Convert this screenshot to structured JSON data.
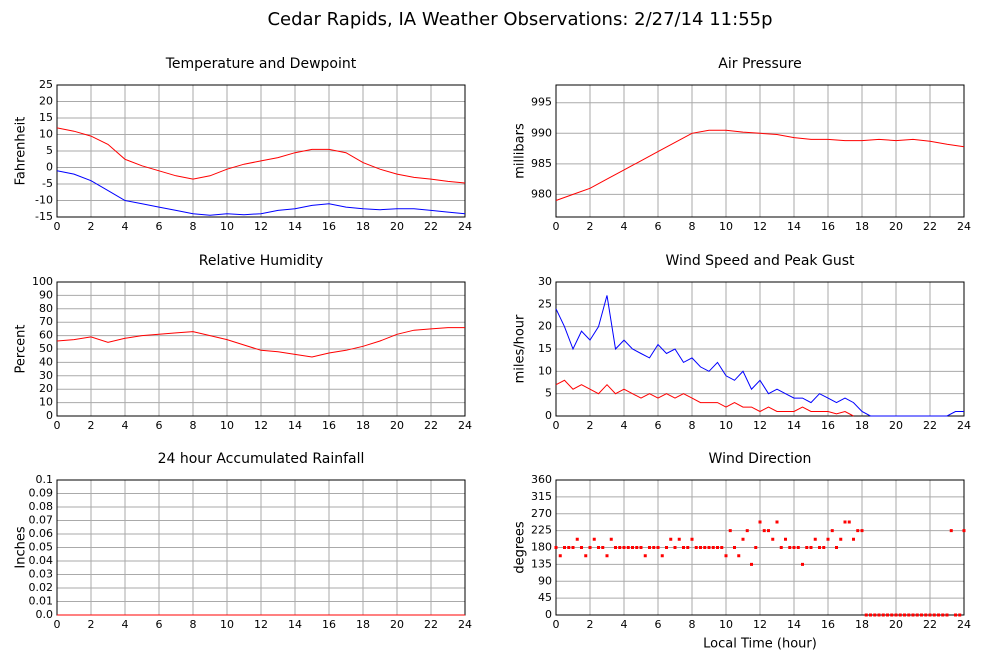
{
  "title": "Cedar Rapids, IA Weather Observations: 2/27/14 11:55p",
  "chart_data": [
    {
      "type": "line",
      "title": "Temperature and Dewpoint",
      "ylabel": "Fahrenheit",
      "x": [
        0,
        1,
        2,
        3,
        4,
        5,
        6,
        7,
        8,
        9,
        10,
        11,
        12,
        13,
        14,
        15,
        16,
        17,
        18,
        19,
        20,
        21,
        22,
        23,
        24
      ],
      "series": [
        {
          "name": "Temperature",
          "color": "#ff0000",
          "values": [
            12,
            11,
            9.5,
            7,
            2.5,
            0.5,
            -1,
            -2.5,
            -3.5,
            -2.5,
            -0.5,
            1,
            2,
            3,
            4.5,
            5.5,
            5.5,
            4.5,
            1.5,
            -0.5,
            -2,
            -3,
            -3.5,
            -4.2,
            -4.7
          ]
        },
        {
          "name": "Dewpoint",
          "color": "#0000ff",
          "values": [
            -1,
            -2,
            -4,
            -7,
            -10,
            -11,
            -12,
            -13,
            -14,
            -14.5,
            -14,
            -14.3,
            -14,
            -13,
            -12.5,
            -11.5,
            -11,
            -12,
            -12.5,
            -12.8,
            -12.5,
            -12.5,
            -13,
            -13.5,
            -14
          ]
        }
      ],
      "xlim": [
        0,
        24
      ],
      "xticks": [
        0,
        2,
        4,
        6,
        8,
        10,
        12,
        14,
        16,
        18,
        20,
        22,
        24
      ],
      "ylim": [
        -15,
        25
      ],
      "yticks": [
        -15,
        -10,
        -5,
        0,
        5,
        10,
        15,
        20,
        25
      ],
      "grid": true
    },
    {
      "type": "line",
      "title": "Air Pressure",
      "ylabel": "millibars",
      "x": [
        0,
        1,
        2,
        3,
        4,
        5,
        6,
        7,
        8,
        9,
        10,
        11,
        12,
        13,
        14,
        15,
        16,
        17,
        18,
        19,
        20,
        21,
        22,
        23,
        24
      ],
      "series": [
        {
          "name": "Pressure",
          "color": "#ff0000",
          "values": [
            979,
            980,
            981,
            982.5,
            984,
            985.5,
            987,
            988.5,
            990,
            990.5,
            990.5,
            990.2,
            990,
            989.8,
            989.3,
            989,
            989,
            988.8,
            988.8,
            989,
            988.8,
            989,
            988.7,
            988.2,
            987.8
          ]
        }
      ],
      "xlim": [
        0,
        24
      ],
      "xticks": [
        0,
        2,
        4,
        6,
        8,
        10,
        12,
        14,
        16,
        18,
        20,
        22,
        24
      ],
      "ylim": [
        976.3,
        997.9
      ],
      "yticks": [
        980,
        985,
        990,
        995
      ],
      "grid": true
    },
    {
      "type": "line",
      "title": "Relative Humidity",
      "ylabel": "Percent",
      "x": [
        0,
        1,
        2,
        3,
        4,
        5,
        6,
        7,
        8,
        9,
        10,
        11,
        12,
        13,
        14,
        15,
        16,
        17,
        18,
        19,
        20,
        21,
        22,
        23,
        24
      ],
      "series": [
        {
          "name": "Humidity",
          "color": "#ff0000",
          "values": [
            56,
            57,
            59,
            55,
            58,
            60,
            61,
            62,
            63,
            60,
            57,
            53,
            49,
            48,
            46,
            44,
            47,
            49,
            52,
            56,
            61,
            64,
            65,
            66,
            66
          ]
        }
      ],
      "xlim": [
        0,
        24
      ],
      "xticks": [
        0,
        2,
        4,
        6,
        8,
        10,
        12,
        14,
        16,
        18,
        20,
        22,
        24
      ],
      "ylim": [
        0,
        100
      ],
      "yticks": [
        0,
        10,
        20,
        30,
        40,
        50,
        60,
        70,
        80,
        90,
        100
      ],
      "grid": true
    },
    {
      "type": "line",
      "title": "Wind Speed and Peak Gust",
      "ylabel": "miles/hour",
      "x": [
        0,
        0.5,
        1,
        1.5,
        2,
        2.5,
        3,
        3.5,
        4,
        4.5,
        5,
        5.5,
        6,
        6.5,
        7,
        7.5,
        8,
        8.5,
        9,
        9.5,
        10,
        10.5,
        11,
        11.5,
        12,
        12.5,
        13,
        13.5,
        14,
        14.5,
        15,
        15.5,
        16,
        16.5,
        17,
        17.5,
        18,
        18.5,
        19,
        19.5,
        20,
        20.5,
        21,
        21.5,
        22,
        22.5,
        23,
        23.5,
        24
      ],
      "series": [
        {
          "name": "Peak Gust",
          "color": "#0000ff",
          "values": [
            24,
            20,
            15,
            19,
            17,
            20,
            27,
            15,
            17,
            15,
            14,
            13,
            16,
            14,
            15,
            12,
            13,
            11,
            10,
            12,
            9,
            8,
            10,
            6,
            8,
            5,
            6,
            5,
            4,
            4,
            3,
            5,
            4,
            3,
            4,
            3,
            1,
            0,
            0,
            0,
            0,
            0,
            0,
            0,
            0,
            0,
            0,
            1,
            1
          ]
        },
        {
          "name": "Wind Speed",
          "color": "#ff0000",
          "values": [
            7,
            8,
            6,
            7,
            6,
            5,
            7,
            5,
            6,
            5,
            4,
            5,
            4,
            5,
            4,
            5,
            4,
            3,
            3,
            3,
            2,
            3,
            2,
            2,
            1,
            2,
            1,
            1,
            1,
            2,
            1,
            1,
            1,
            0.5,
            1,
            0,
            null,
            null,
            null,
            null,
            null,
            null,
            null,
            null,
            null,
            null,
            null,
            null,
            null
          ]
        }
      ],
      "xlim": [
        0,
        24
      ],
      "xticks": [
        0,
        2,
        4,
        6,
        8,
        10,
        12,
        14,
        16,
        18,
        20,
        22,
        24
      ],
      "ylim": [
        0,
        30
      ],
      "yticks": [
        0,
        5,
        10,
        15,
        20,
        25,
        30
      ],
      "grid": true
    },
    {
      "type": "line",
      "title": "24 hour Accumulated Rainfall",
      "ylabel": "Inches",
      "x": [
        0,
        24
      ],
      "series": [
        {
          "name": "Rainfall",
          "color": "#ff0000",
          "values": [
            0,
            0
          ]
        }
      ],
      "xlim": [
        0,
        24
      ],
      "xticks": [
        0,
        2,
        4,
        6,
        8,
        10,
        12,
        14,
        16,
        18,
        20,
        22,
        24
      ],
      "ylim": [
        0,
        0.1
      ],
      "yticks": [
        {
          "value": 0,
          "label": "0.0"
        },
        0.01,
        0.02,
        0.03,
        0.04,
        0.05,
        0.06,
        0.07,
        0.08,
        0.09,
        0.1
      ],
      "grid": true
    },
    {
      "type": "scatter",
      "title": "Wind Direction",
      "ylabel": "degrees",
      "xlabel": "Local Time (hour)",
      "x": [
        0,
        0.25,
        0.5,
        0.75,
        1,
        1.25,
        1.5,
        1.75,
        2,
        2.25,
        2.5,
        2.75,
        3,
        3.25,
        3.5,
        3.75,
        4,
        4.25,
        4.5,
        4.75,
        5,
        5.25,
        5.5,
        5.75,
        6,
        6.25,
        6.5,
        6.75,
        7,
        7.25,
        7.5,
        7.75,
        8,
        8.25,
        8.5,
        8.75,
        9,
        9.25,
        9.5,
        9.75,
        10,
        10.25,
        10.5,
        10.75,
        11,
        11.25,
        11.5,
        11.75,
        12,
        12.25,
        12.5,
        12.75,
        13,
        13.25,
        13.5,
        13.75,
        14,
        14.25,
        14.5,
        14.75,
        15,
        15.25,
        15.5,
        15.75,
        16,
        16.25,
        16.5,
        16.75,
        17,
        17.25,
        17.5,
        17.75,
        18,
        18.25,
        18.5,
        18.75,
        19,
        19.25,
        19.5,
        19.75,
        20,
        20.25,
        20.5,
        20.75,
        21,
        21.25,
        21.5,
        21.75,
        22,
        22.25,
        22.5,
        22.75,
        23,
        23.25,
        23.5,
        23.75,
        24
      ],
      "series": [
        {
          "name": "Direction",
          "color": "#ff0000",
          "values": [
            180,
            158,
            180,
            180,
            180,
            202,
            180,
            158,
            180,
            202,
            180,
            180,
            158,
            202,
            180,
            180,
            180,
            180,
            180,
            180,
            180,
            158,
            180,
            180,
            180,
            158,
            180,
            202,
            180,
            202,
            180,
            180,
            202,
            180,
            180,
            180,
            180,
            180,
            180,
            180,
            158,
            225,
            180,
            158,
            202,
            225,
            135,
            180,
            248,
            225,
            225,
            202,
            248,
            180,
            202,
            180,
            180,
            180,
            135,
            180,
            180,
            202,
            180,
            180,
            202,
            225,
            180,
            202,
            248,
            248,
            202,
            225,
            225,
            0,
            0,
            0,
            0,
            0,
            0,
            0,
            0,
            0,
            0,
            0,
            0,
            0,
            0,
            0,
            0,
            0,
            0,
            0,
            0,
            225,
            0,
            0,
            225
          ]
        }
      ],
      "xlim": [
        0,
        24
      ],
      "xticks": [
        0,
        2,
        4,
        6,
        8,
        10,
        12,
        14,
        16,
        18,
        20,
        22,
        24
      ],
      "ylim": [
        0,
        360
      ],
      "yticks": [
        0,
        45,
        90,
        135,
        180,
        225,
        270,
        315,
        360
      ],
      "grid": true
    }
  ]
}
